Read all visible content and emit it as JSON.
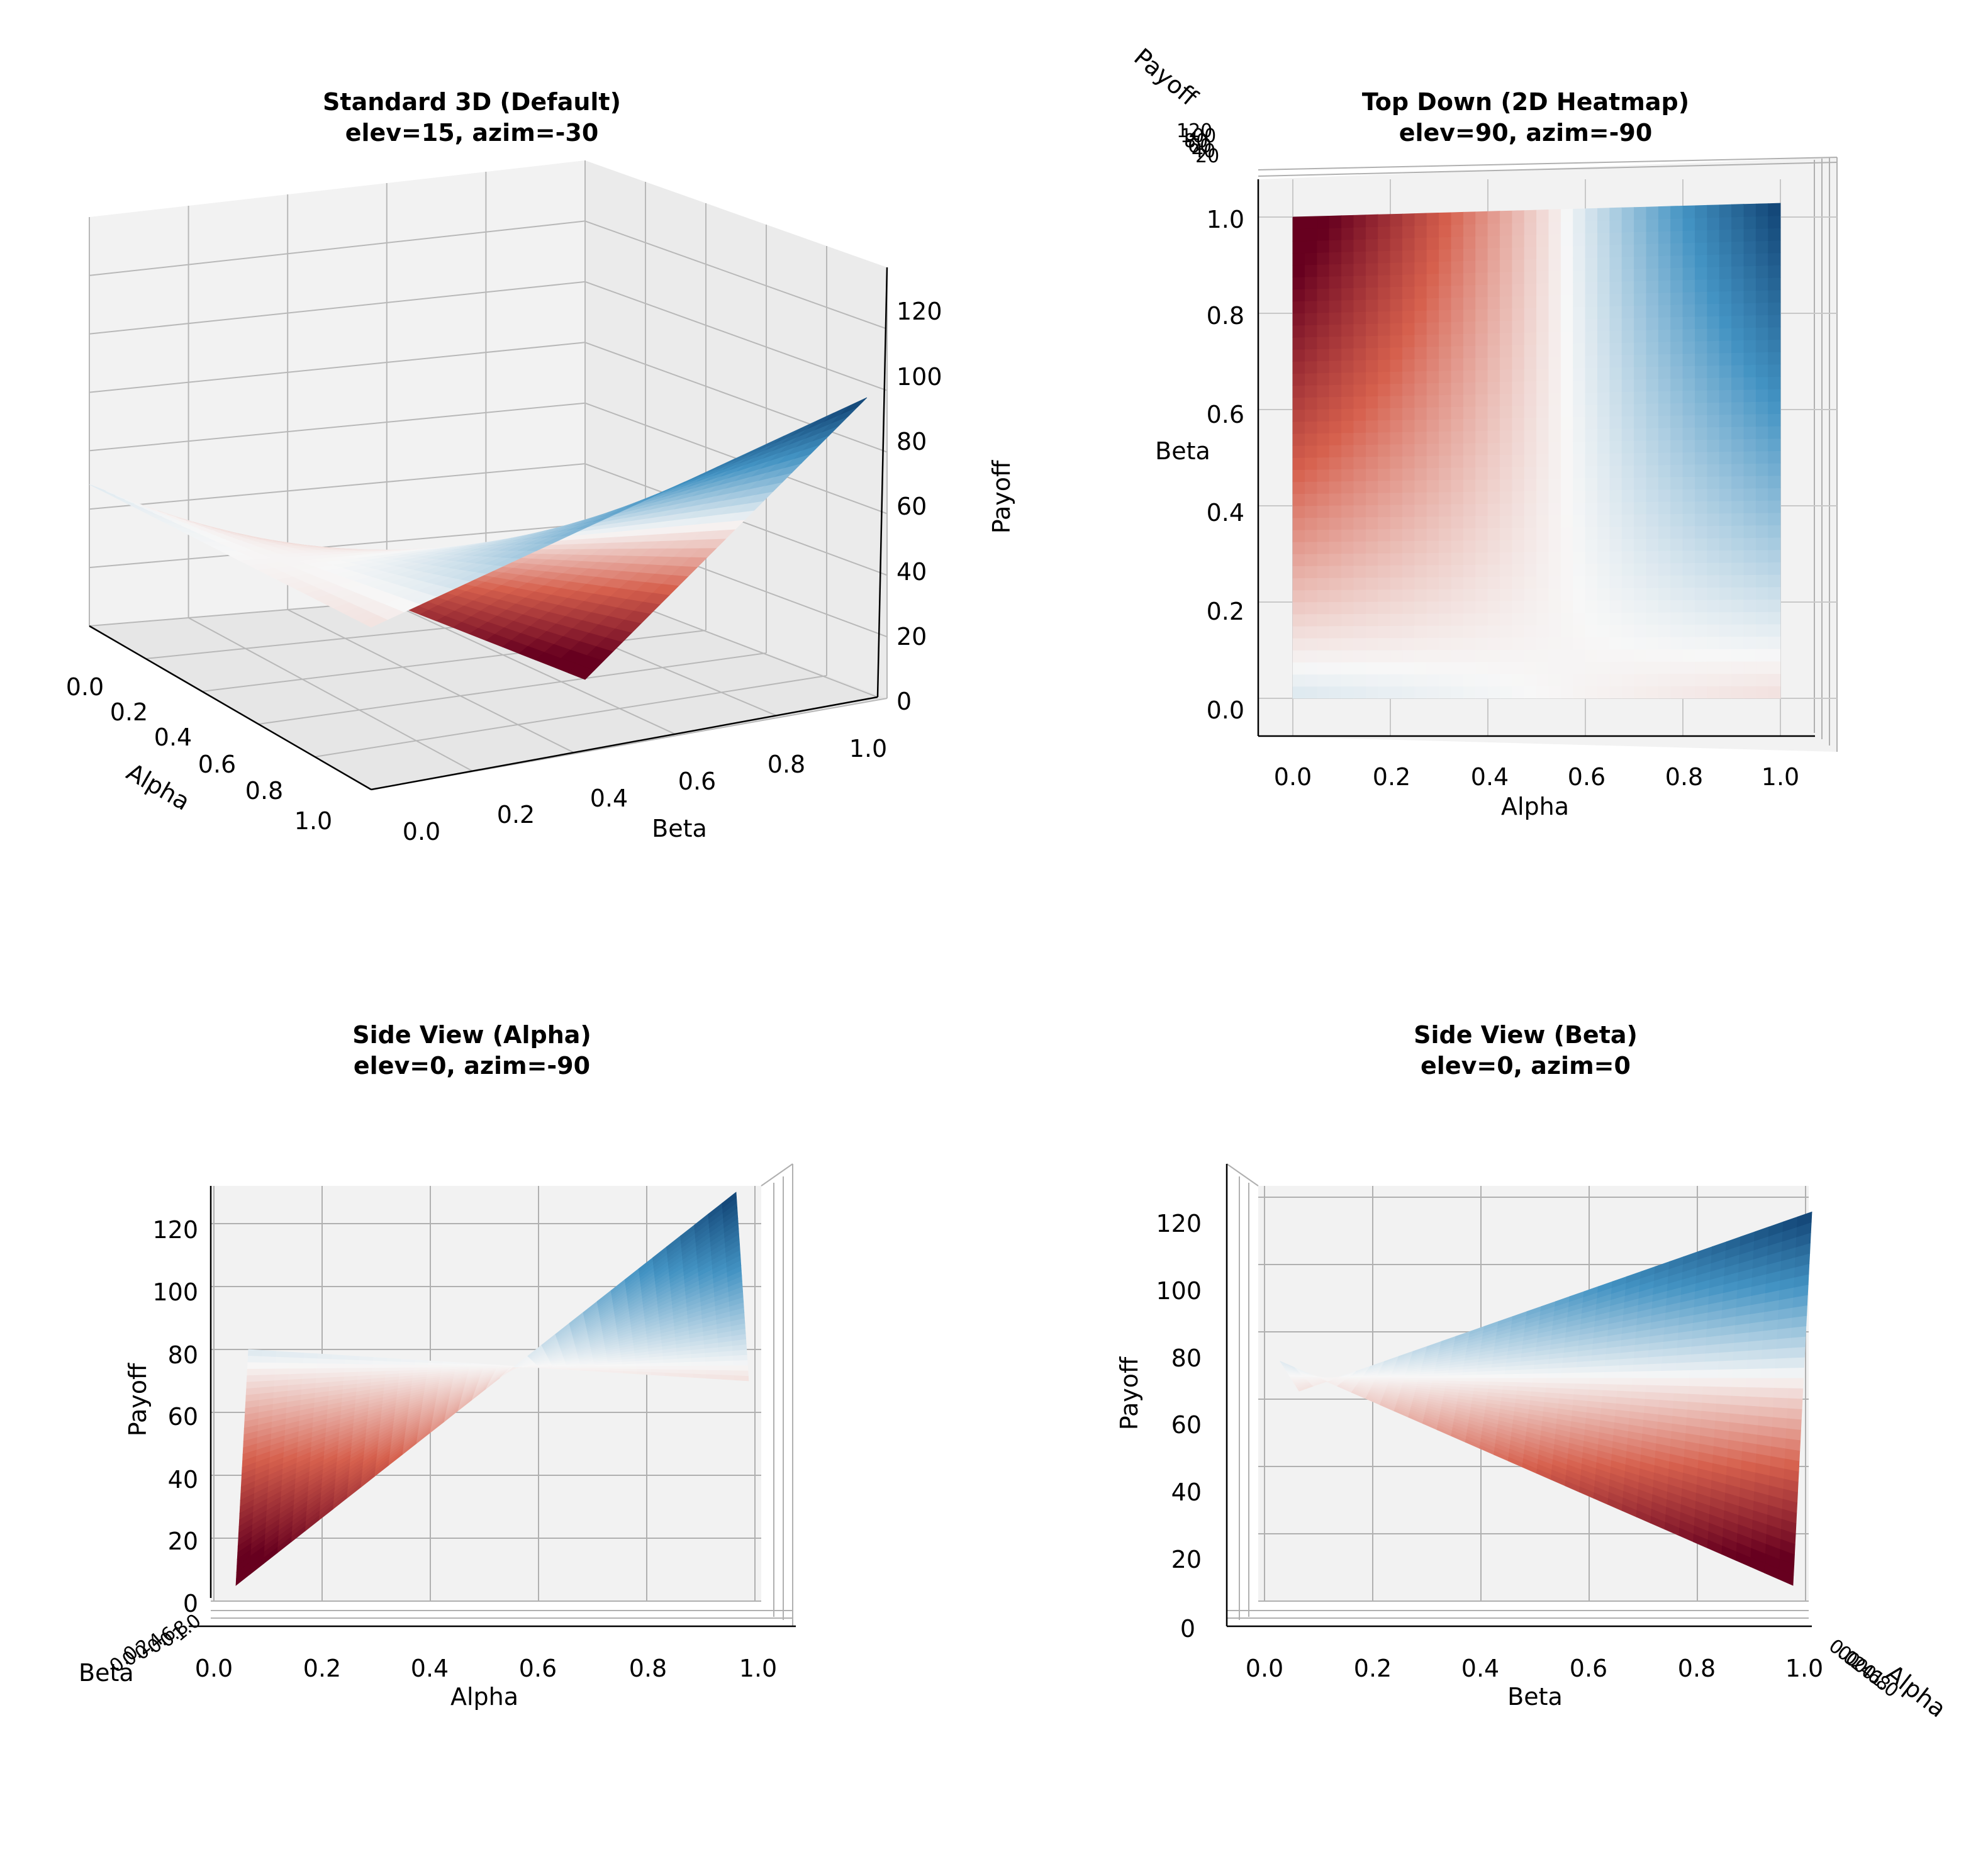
{
  "figure": {
    "colormap": "RdBu",
    "colors": {
      "red_dark": "#67001f",
      "red_mid": "#d6604d",
      "white": "#f7f7f7",
      "blue_mid": "#4393c3",
      "blue_dark": "#053061",
      "pane": "#f2f2f2",
      "grid": "#b0b0b0"
    }
  },
  "chart_data": [
    {
      "type": "surface3d",
      "view": "standard",
      "title_line1": "Standard 3D (Default)",
      "title_line2": "elev=15, azim=-30",
      "xlabel": "Alpha",
      "ylabel": "Beta",
      "zlabel": "Payoff",
      "x_ticks": [
        "0.0",
        "0.2",
        "0.4",
        "0.6",
        "0.8",
        "1.0"
      ],
      "y_ticks": [
        "0.0",
        "0.2",
        "0.4",
        "0.6",
        "0.8",
        "1.0"
      ],
      "z_ticks": [
        "0",
        "20",
        "40",
        "60",
        "80",
        "100",
        "120"
      ],
      "xlim": [
        0,
        1
      ],
      "ylim": [
        0,
        1
      ],
      "zlim": [
        0,
        130
      ],
      "corner_values": {
        "alpha0_beta0": 75,
        "alpha1_beta0": 65,
        "alpha0_beta1": 0,
        "alpha1_beta1": 125
      },
      "color_center": 70
    },
    {
      "type": "heatmap",
      "view": "top",
      "title_line1": "Top Down (2D Heatmap)",
      "title_line2": "elev=90, azim=-90",
      "xlabel": "Alpha",
      "ylabel": "Beta",
      "zlabel": "Payoff",
      "x_ticks": [
        "0.0",
        "0.2",
        "0.4",
        "0.6",
        "0.8",
        "1.0"
      ],
      "y_ticks": [
        "0.0",
        "0.2",
        "0.4",
        "0.6",
        "0.8",
        "1.0"
      ],
      "z_ticks": [
        "20",
        "40",
        "60",
        "80",
        "100",
        "120"
      ],
      "color_center_alpha": 0.56,
      "color_center_beta": 0.1
    },
    {
      "type": "surface3d",
      "view": "side_alpha",
      "title_line1": "Side View (Alpha)",
      "title_line2": "elev=0, azim=-90",
      "xlabel": "Alpha",
      "ylabel": "Beta",
      "zlabel": "Payoff",
      "x_ticks": [
        "0.0",
        "0.2",
        "0.4",
        "0.6",
        "0.8",
        "1.0"
      ],
      "y_ticks": [
        "0.0",
        "0.2",
        "0.4",
        "0.6",
        "0.8",
        "1.0"
      ],
      "z_ticks": [
        "0",
        "20",
        "40",
        "60",
        "80",
        "100",
        "120"
      ],
      "zlim": [
        0,
        130
      ],
      "edge_beta0": {
        "alpha": [
          0,
          1
        ],
        "payoff": [
          75,
          65
        ]
      },
      "edge_beta1": {
        "alpha": [
          0,
          1
        ],
        "payoff": [
          0,
          125
        ]
      }
    },
    {
      "type": "surface3d",
      "view": "side_beta",
      "title_line1": "Side View (Beta)",
      "title_line2": "elev=0, azim=0",
      "xlabel": "Alpha",
      "ylabel": "Beta",
      "zlabel": "Payoff",
      "x_ticks": [
        "0.0",
        "0.2",
        "0.4",
        "0.6",
        "0.8",
        "1.0"
      ],
      "y_ticks": [
        "0.0",
        "0.2",
        "0.4",
        "0.6",
        "0.8",
        "1.0"
      ],
      "z_ticks": [
        "0",
        "20",
        "40",
        "60",
        "80",
        "100",
        "120"
      ],
      "zlim": [
        0,
        130
      ],
      "edge_alpha1": {
        "beta": [
          0,
          1
        ],
        "payoff": [
          65,
          125
        ]
      },
      "edge_alpha0": {
        "beta": [
          0,
          1
        ],
        "payoff": [
          75,
          0
        ]
      }
    }
  ]
}
